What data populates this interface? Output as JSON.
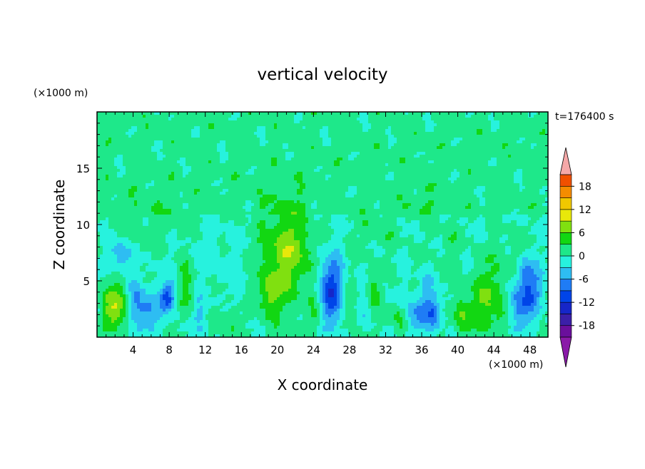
{
  "chart_data": {
    "type": "heatmap",
    "title": "vertical velocity",
    "xlabel": "X coordinate",
    "ylabel": "Z coordinate",
    "x_unit_label": "(×1000 m)",
    "y_unit_label": "(×1000 m)",
    "time_label": "t=176400 s",
    "xlim": [
      0,
      50
    ],
    "ylim": [
      0,
      20
    ],
    "x_ticks": [
      4,
      8,
      12,
      16,
      20,
      24,
      28,
      32,
      36,
      40,
      44,
      48
    ],
    "y_ticks": [
      5,
      10,
      15
    ],
    "colorbar": {
      "levels": [
        -21,
        -18,
        -15,
        -12,
        -9,
        -6,
        -3,
        0,
        3,
        6,
        9,
        12,
        15,
        18,
        21
      ],
      "tick_labels": [
        18,
        12,
        6,
        0,
        -6,
        -12,
        -18
      ],
      "colors": [
        "#6a0f9c",
        "#3b1fa8",
        "#1626c8",
        "#0044e8",
        "#1f7cf5",
        "#2ebdf2",
        "#27f2de",
        "#1ee88a",
        "#12d712",
        "#80e010",
        "#e8e80a",
        "#f0c800",
        "#f58c00",
        "#f05000",
        "#e01010"
      ],
      "under_color": "#8a1aa8",
      "over_color": "#f5a8a8"
    },
    "features": [
      {
        "x": 20.5,
        "z": 7.0,
        "sx": 1.8,
        "sz": 3.2,
        "amp": 6.5
      },
      {
        "x": 19.0,
        "z": 3.8,
        "sx": 1.0,
        "sz": 1.3,
        "amp": 4.5
      },
      {
        "x": 22.2,
        "z": 8.2,
        "sx": 1.2,
        "sz": 2.2,
        "amp": 3.0
      },
      {
        "x": 2.0,
        "z": 2.6,
        "sx": 1.0,
        "sz": 1.6,
        "amp": 8.5
      },
      {
        "x": 4.4,
        "z": 3.0,
        "sx": 0.8,
        "sz": 1.5,
        "amp": -6.0
      },
      {
        "x": 5.8,
        "z": 2.0,
        "sx": 0.7,
        "sz": 1.3,
        "amp": -6.0
      },
      {
        "x": 7.8,
        "z": 3.5,
        "sx": 0.6,
        "sz": 0.9,
        "amp": -11.0
      },
      {
        "x": 2.6,
        "z": 7.2,
        "sx": 0.8,
        "sz": 1.0,
        "amp": -6.0
      },
      {
        "x": 10.0,
        "z": 4.5,
        "sx": 0.7,
        "sz": 2.0,
        "amp": 4.0
      },
      {
        "x": 11.5,
        "z": 2.0,
        "sx": 0.7,
        "sz": 1.2,
        "amp": -4.0
      },
      {
        "x": 14.5,
        "z": 1.5,
        "sx": 1.3,
        "sz": 1.2,
        "amp": 2.5
      },
      {
        "x": 26.0,
        "z": 4.0,
        "sx": 0.9,
        "sz": 2.2,
        "amp": -11.5
      },
      {
        "x": 24.5,
        "z": 2.2,
        "sx": 0.8,
        "sz": 1.0,
        "amp": 3.0
      },
      {
        "x": 28.0,
        "z": 2.8,
        "sx": 0.6,
        "sz": 1.2,
        "amp": 3.5
      },
      {
        "x": 29.5,
        "z": 3.0,
        "sx": 0.6,
        "sz": 1.0,
        "amp": -3.0
      },
      {
        "x": 30.5,
        "z": 4.0,
        "sx": 0.7,
        "sz": 1.2,
        "amp": 4.0
      },
      {
        "x": 33.5,
        "z": 1.6,
        "sx": 0.8,
        "sz": 0.9,
        "amp": 4.0
      },
      {
        "x": 35.5,
        "z": 2.0,
        "sx": 1.1,
        "sz": 1.2,
        "amp": -6.5
      },
      {
        "x": 37.5,
        "z": 2.2,
        "sx": 0.6,
        "sz": 1.0,
        "amp": -7.0
      },
      {
        "x": 36.5,
        "z": 4.5,
        "sx": 0.6,
        "sz": 1.2,
        "amp": -3.0
      },
      {
        "x": 40.5,
        "z": 2.0,
        "sx": 0.8,
        "sz": 1.3,
        "amp": 5.5
      },
      {
        "x": 43.5,
        "z": 3.2,
        "sx": 1.3,
        "sz": 2.2,
        "amp": 6.5
      },
      {
        "x": 47.0,
        "z": 3.0,
        "sx": 1.0,
        "sz": 1.5,
        "amp": -8.0
      },
      {
        "x": 48.6,
        "z": 4.5,
        "sx": 0.8,
        "sz": 1.5,
        "amp": -6.0
      },
      {
        "x": 47.3,
        "z": 5.8,
        "sx": 0.5,
        "sz": 1.0,
        "amp": -5.0
      },
      {
        "x": 39.0,
        "z": 8.0,
        "sx": 1.0,
        "sz": 1.5,
        "amp": 2.0
      },
      {
        "x": 31.0,
        "z": 9.5,
        "sx": 1.5,
        "sz": 1.2,
        "amp": 2.2
      },
      {
        "x": 36.5,
        "z": 12.0,
        "sx": 2.0,
        "sz": 1.2,
        "amp": 1.5
      },
      {
        "x": 6.0,
        "z": 10.0,
        "sx": 3.0,
        "sz": 1.5,
        "amp": 1.8
      },
      {
        "x": 12.0,
        "z": 7.5,
        "sx": 2.0,
        "sz": 2.0,
        "amp": -1.5
      },
      {
        "x": 45.5,
        "z": 7.5,
        "sx": 1.2,
        "sz": 1.5,
        "amp": 1.5
      },
      {
        "x": 16.0,
        "z": 4.5,
        "sx": 1.2,
        "sz": 2.0,
        "amp": -1.3
      }
    ]
  }
}
